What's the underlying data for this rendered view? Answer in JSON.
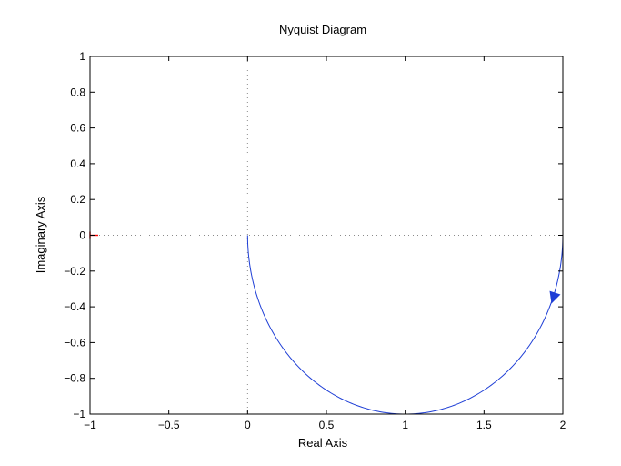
{
  "chart_data": {
    "type": "line",
    "title": "Nyquist Diagram",
    "xlabel": "Real Axis",
    "ylabel": "Imaginary Axis",
    "xlim": [
      -1,
      2
    ],
    "ylim": [
      -1,
      1
    ],
    "xticks": [
      -1,
      -0.5,
      0,
      0.5,
      1,
      1.5,
      2
    ],
    "xtick_labels": [
      "−1",
      "−0.5",
      "0",
      "0.5",
      "1",
      "1.5",
      "2"
    ],
    "yticks": [
      1,
      0.8,
      0.6,
      0.4,
      0.2,
      0,
      -0.2,
      -0.4,
      -0.6,
      -0.8,
      -1
    ],
    "ytick_labels": [
      "1",
      "0.8",
      "0.6",
      "0.4",
      "0.2",
      "0",
      "−0.2",
      "−0.4",
      "−0.6",
      "−0.8",
      "−1"
    ],
    "grid": false,
    "zero_lines": "dotted",
    "series": [
      {
        "color": "#1f3fd6",
        "curve": "semicircle",
        "center": [
          1,
          0
        ],
        "radius": 1,
        "from": [
          2,
          0
        ],
        "to": [
          0,
          0
        ],
        "arrow_at": [
          1.94,
          -0.35
        ],
        "arrow_direction": "clockwise"
      }
    ],
    "critical_point": {
      "x": -1,
      "y": 0,
      "marker": "+",
      "color": "#ff0000"
    }
  }
}
